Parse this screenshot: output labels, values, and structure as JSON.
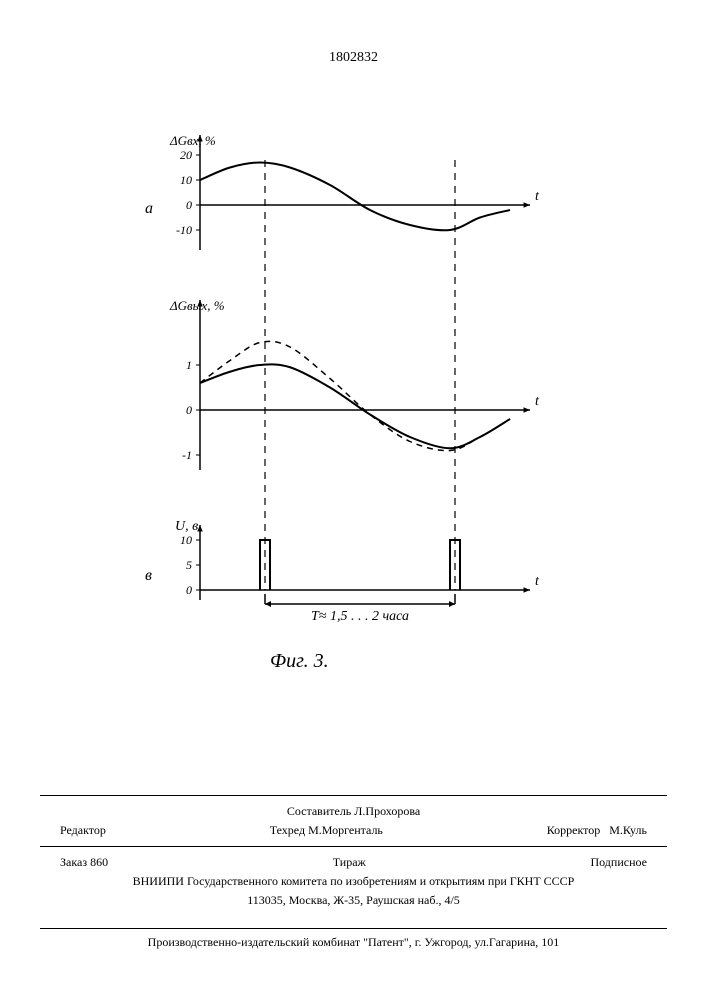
{
  "page_number": "1802832",
  "figure": {
    "caption": "Фиг. 3.",
    "stroke_color": "#000000",
    "background_color": "#ffffff",
    "dash_pattern": "6 5",
    "font_family_italic": "cursive",
    "panel_a": {
      "label": "а",
      "ylabel": "ΔGвх, %",
      "xlabel": "t",
      "yticks": [
        -10,
        0,
        10,
        20
      ],
      "ylim": [
        -15,
        25
      ],
      "curve": [
        {
          "x": 0,
          "y": 10
        },
        {
          "x": 30,
          "y": 15
        },
        {
          "x": 60,
          "y": 17
        },
        {
          "x": 90,
          "y": 15
        },
        {
          "x": 130,
          "y": 8
        },
        {
          "x": 170,
          "y": -2
        },
        {
          "x": 210,
          "y": -8
        },
        {
          "x": 250,
          "y": -10
        },
        {
          "x": 280,
          "y": -5
        },
        {
          "x": 310,
          "y": -2
        }
      ],
      "line_width": 2
    },
    "panel_b": {
      "ylabel": "ΔGвых, %",
      "xlabel": "t",
      "yticks": [
        -1,
        0,
        1
      ],
      "ylim": [
        -1.5,
        2
      ],
      "curve_solid": [
        {
          "x": 0,
          "y": 0.6
        },
        {
          "x": 30,
          "y": 0.85
        },
        {
          "x": 60,
          "y": 1.0
        },
        {
          "x": 90,
          "y": 0.95
        },
        {
          "x": 130,
          "y": 0.5
        },
        {
          "x": 170,
          "y": -0.1
        },
        {
          "x": 210,
          "y": -0.6
        },
        {
          "x": 250,
          "y": -0.85
        },
        {
          "x": 280,
          "y": -0.6
        },
        {
          "x": 310,
          "y": -0.2
        }
      ],
      "curve_dashed": [
        {
          "x": 0,
          "y": 0.6
        },
        {
          "x": 30,
          "y": 1.1
        },
        {
          "x": 60,
          "y": 1.5
        },
        {
          "x": 90,
          "y": 1.4
        },
        {
          "x": 130,
          "y": 0.7
        },
        {
          "x": 170,
          "y": -0.1
        },
        {
          "x": 210,
          "y": -0.7
        },
        {
          "x": 250,
          "y": -0.9
        },
        {
          "x": 280,
          "y": -0.6
        },
        {
          "x": 310,
          "y": -0.2
        }
      ],
      "line_width": 2
    },
    "panel_c": {
      "label": "в",
      "ylabel": "U, в",
      "xlabel": "t",
      "yticks": [
        0,
        5,
        10
      ],
      "ylim": [
        0,
        12
      ],
      "pulses": [
        {
          "x": 60,
          "width": 10,
          "height": 10
        },
        {
          "x": 250,
          "width": 10,
          "height": 10
        }
      ],
      "period_label": "T≈ 1,5 . . . 2 часа",
      "line_width": 2
    },
    "guide_lines_x": [
      60,
      250
    ]
  },
  "footer": {
    "compiler_label": "Составитель",
    "compiler": "Л.Прохорова",
    "editor_label": "Редактор",
    "techred_label": "Техред",
    "techred": "М.Моргенталь",
    "corrector_label": "Корректор",
    "corrector": "М.Куль",
    "order_label": "Заказ",
    "order": "860",
    "circulation_label": "Тираж",
    "subscription": "Подписное",
    "org_line1": "ВНИИПИ Государственного комитета по изобретениям и открытиям при ГКНТ СССР",
    "org_line2": "113035, Москва, Ж-35, Раушская наб., 4/5",
    "press_line": "Производственно-издательский комбинат \"Патент\", г. Ужгород, ул.Гагарина, 101"
  }
}
